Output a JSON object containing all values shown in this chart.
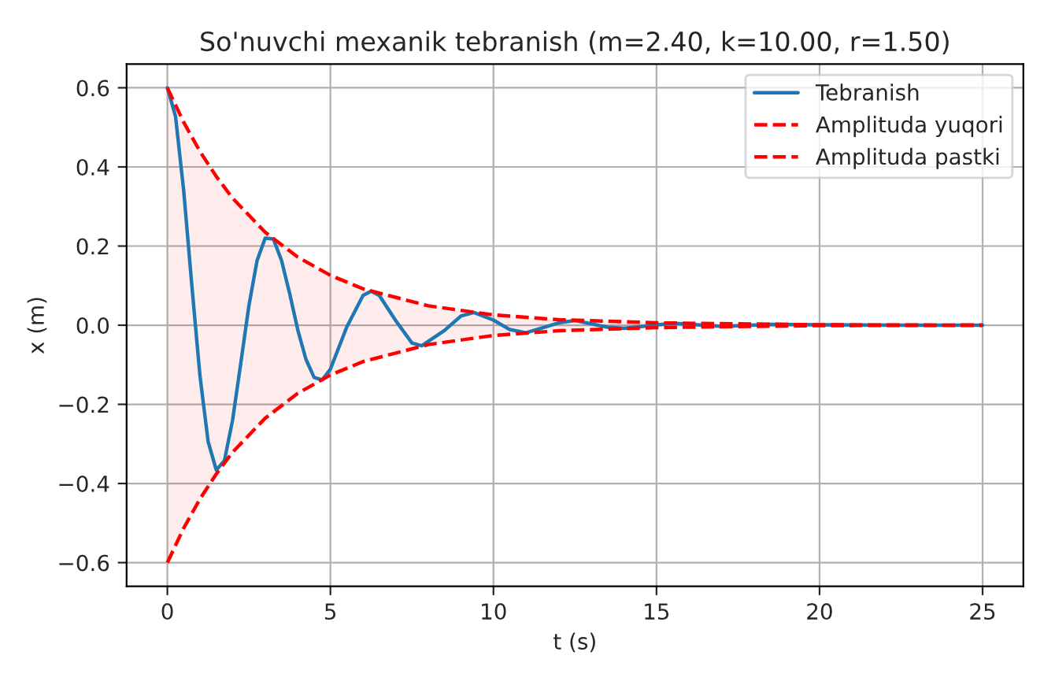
{
  "chart_data": {
    "type": "line",
    "title": "So'nuvchi mexanik tebranish (m=2.40, k=10.00, r=1.50)",
    "xlabel": "t (s)",
    "ylabel": "x (m)",
    "series": [
      {
        "name": "Tebranish",
        "color": "#1f77b4",
        "line_style": "solid",
        "x": [
          0,
          0.25,
          0.5,
          0.75,
          1.0,
          1.25,
          1.5,
          1.75,
          2.0,
          2.25,
          2.5,
          2.75,
          3.0,
          3.25,
          3.5,
          3.75,
          4.0,
          4.25,
          4.5,
          4.75,
          5.0,
          5.5,
          6.0,
          6.25,
          6.5,
          7.0,
          7.5,
          7.8,
          8.5,
          9.0,
          9.4,
          10.0,
          10.5,
          11.0,
          12.0,
          12.5,
          13.5,
          14.0,
          15.5,
          17.0,
          18.5,
          20.0,
          22.5,
          25.0
        ],
        "values": [
          0.6,
          0.528,
          0.341,
          0.101,
          -0.128,
          -0.294,
          -0.366,
          -0.342,
          -0.24,
          -0.097,
          0.049,
          0.163,
          0.22,
          0.218,
          0.164,
          0.08,
          -0.012,
          -0.086,
          -0.132,
          -0.138,
          -0.111,
          -0.005,
          0.075,
          0.086,
          0.075,
          0.012,
          -0.045,
          -0.052,
          -0.013,
          0.023,
          0.032,
          0.013,
          -0.011,
          -0.019,
          0.006,
          0.012,
          -0.005,
          -0.008,
          0.005,
          -0.003,
          0.002,
          0.001,
          0,
          0
        ]
      },
      {
        "name": "Amplituda yuqori",
        "color": "#ff0000",
        "line_style": "dashed",
        "x": [
          0,
          0.5,
          1,
          1.5,
          2,
          3,
          4,
          5,
          6,
          8,
          10,
          12,
          15,
          20,
          25
        ],
        "values": [
          0.6,
          0.513,
          0.439,
          0.376,
          0.321,
          0.235,
          0.172,
          0.126,
          0.092,
          0.049,
          0.026,
          0.014,
          0.006,
          0.001,
          0
        ],
        "lower": [
          -0.6,
          -0.513,
          -0.439,
          -0.376,
          -0.321,
          -0.235,
          -0.172,
          -0.126,
          -0.092,
          -0.049,
          -0.026,
          -0.014,
          -0.006,
          -0.001,
          0
        ],
        "upper": [
          0.6,
          0.513,
          0.439,
          0.376,
          0.321,
          0.235,
          0.172,
          0.126,
          0.092,
          0.049,
          0.026,
          0.014,
          0.006,
          0.001,
          0
        ]
      },
      {
        "name": "Amplituda pastki",
        "color": "#ff0000",
        "line_style": "dashed",
        "x": [
          0,
          0.5,
          1,
          1.5,
          2,
          3,
          4,
          5,
          6,
          8,
          10,
          12,
          15,
          20,
          25
        ],
        "values": [
          -0.6,
          -0.513,
          -0.439,
          -0.376,
          -0.321,
          -0.235,
          -0.172,
          -0.126,
          -0.092,
          -0.049,
          -0.026,
          -0.014,
          -0.006,
          -0.001,
          0
        ]
      }
    ],
    "xlim": [
      -1.25,
      26.25
    ],
    "xticks": [
      0,
      5,
      10,
      15,
      20,
      25
    ],
    "ylim": [
      -0.66,
      0.66
    ],
    "yticks": [
      {
        "value": -0.6,
        "label": "−0.6"
      },
      {
        "value": -0.4,
        "label": "−0.4"
      },
      {
        "value": -0.2,
        "label": "−0.2"
      },
      {
        "value": 0,
        "label": "0.0"
      },
      {
        "value": 0.2,
        "label": "0.2"
      },
      {
        "value": 0.4,
        "label": "0.4"
      },
      {
        "value": 0.6,
        "label": "0.6"
      }
    ],
    "grid": true,
    "legend": "top right"
  }
}
